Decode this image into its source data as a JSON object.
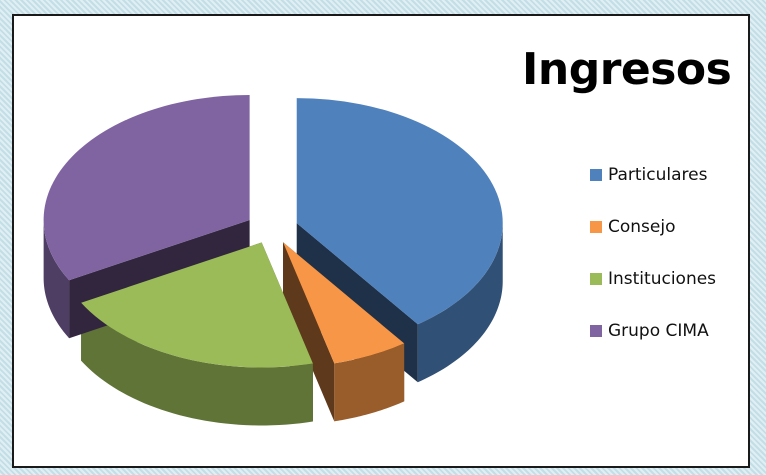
{
  "chart_data": {
    "type": "pie",
    "title": "Ingresos",
    "legend_position": "right",
    "slices": [
      {
        "label": "Particulares",
        "value": 40,
        "color": "#4f81bd"
      },
      {
        "label": "Consejo",
        "value": 6,
        "color": "#f79646"
      },
      {
        "label": "Instituciones",
        "value": 21,
        "color": "#9bbb59"
      },
      {
        "label": "Grupo CIMA",
        "value": 33,
        "color": "#8064a2"
      }
    ]
  }
}
